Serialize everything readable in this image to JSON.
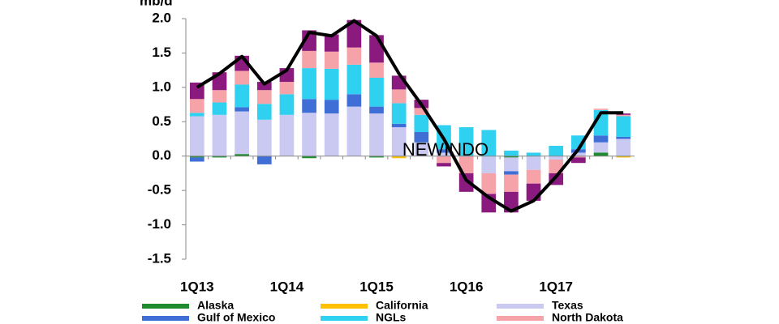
{
  "chart_data": {
    "type": "bar",
    "y_label": "mb/d",
    "annotation": "NEWINDO",
    "categories": [
      "1Q13",
      null,
      null,
      null,
      "1Q14",
      null,
      null,
      null,
      "1Q15",
      null,
      null,
      null,
      "1Q16",
      null,
      null,
      null,
      "1Q17",
      null,
      null,
      null
    ],
    "ylim": [
      -1.5,
      2.0
    ],
    "yticks": [
      {
        "value": 2,
        "label": "2.0"
      },
      1.5,
      {
        "value": 1,
        "label": "1.0"
      },
      0.5,
      {
        "value": 0,
        "label": "0.0"
      },
      -0.5,
      {
        "value": -1,
        "label": "-1.0"
      },
      -1.5
    ],
    "series": [
      {
        "name": "Alaska",
        "color": "#1e8c2e",
        "values": [
          -0.02,
          -0.02,
          0.03,
          0,
          0,
          -0.03,
          0,
          0,
          -0.02,
          0,
          0,
          0,
          0,
          0,
          -0.02,
          0,
          0,
          0,
          0.05,
          0
        ]
      },
      {
        "name": "California",
        "color": "#ffc000",
        "values": [
          0,
          0,
          0,
          0,
          0,
          0,
          0,
          0,
          0,
          -0.03,
          0,
          0,
          0,
          0,
          0,
          0,
          0,
          0,
          0,
          -0.02
        ]
      },
      {
        "name": "Texas",
        "color": "#c9c9f2",
        "values": [
          0.58,
          0.6,
          0.62,
          0.53,
          0.6,
          0.63,
          0.62,
          0.72,
          0.62,
          0.42,
          0.2,
          0.05,
          0,
          -0.25,
          -0.2,
          -0.2,
          -0.05,
          0.05,
          0.15,
          0.25
        ]
      },
      {
        "name": "Gulf of Mexico",
        "color": "#3f6fd6",
        "values": [
          -0.06,
          0,
          0.06,
          -0.12,
          0,
          0.2,
          0.2,
          0.18,
          0.1,
          0.05,
          0.15,
          0.05,
          0,
          0,
          -0.05,
          0,
          0,
          0.05,
          0.1,
          0.03
        ]
      },
      {
        "name": "NGLs",
        "color": "#2fd0f0",
        "values": [
          0.05,
          0.18,
          0.33,
          0.23,
          0.3,
          0.45,
          0.45,
          0.43,
          0.42,
          0.3,
          0.25,
          0.35,
          0.42,
          0.38,
          0.08,
          0.05,
          0.15,
          0.2,
          0.37,
          0.3
        ]
      },
      {
        "name": "North Dakota",
        "color": "#f5a3a8",
        "values": [
          0.2,
          0.18,
          0.2,
          0.2,
          0.18,
          0.25,
          0.25,
          0.25,
          0.22,
          0.2,
          0.1,
          -0.1,
          -0.25,
          -0.3,
          -0.25,
          -0.2,
          -0.2,
          -0.02,
          0.02,
          0.02
        ]
      },
      {
        "color": "#8b1a7e",
        "values": [
          0.24,
          0.26,
          0.22,
          0.12,
          0.2,
          0.3,
          0.25,
          0.4,
          0.4,
          0.2,
          0.12,
          -0.05,
          -0.27,
          -0.27,
          -0.3,
          -0.25,
          -0.17,
          -0.08,
          0,
          0.02
        ]
      }
    ],
    "total_line": {
      "color": "#000000",
      "values": [
        1.0,
        1.2,
        1.45,
        1.05,
        1.25,
        1.8,
        1.75,
        1.97,
        1.75,
        1.2,
        0.75,
        0.25,
        -0.35,
        -0.6,
        -0.8,
        -0.65,
        -0.3,
        0.1,
        0.63,
        0.63
      ]
    }
  }
}
